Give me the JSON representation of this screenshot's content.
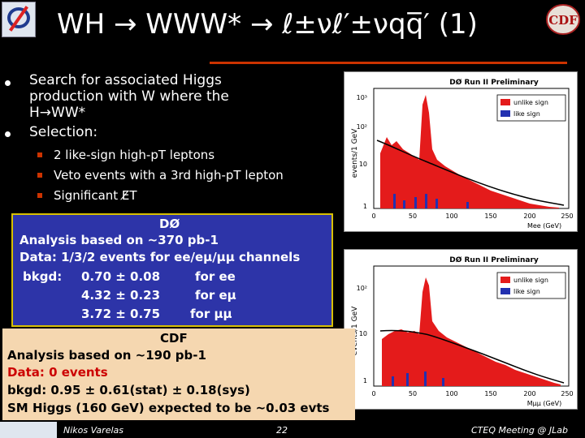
{
  "header": {
    "title": "WH → WWW* → ℓ±νℓ′±νqq̅′ (1)",
    "logo_left": "DØ",
    "logo_right": "CDF"
  },
  "bullets": [
    {
      "text_lines": [
        "Search for associated Higgs",
        "production with W where the",
        "H→WW*"
      ]
    },
    {
      "text_lines": [
        "Selection:"
      ]
    }
  ],
  "sub_bullets": [
    "2 like-sign high-pT leptons",
    "Veto events with a 3rd high-pT lepton",
    "Significant E̸T"
  ],
  "plot_top": {
    "header": "DØ Run II Preliminary",
    "ylabel": "events/1 GeV",
    "xlabel": "Mee (GeV)",
    "legend": [
      "unlike sign",
      "like sign"
    ],
    "yticks": [
      "10³",
      "10²",
      "10",
      "1"
    ],
    "xticks": [
      "0",
      "50",
      "100",
      "150",
      "200",
      "250"
    ]
  },
  "plot_bottom": {
    "header": "DØ Run II Preliminary",
    "ylabel": "events/1 GeV",
    "xlabel": "Mμμ (GeV)",
    "legend": [
      "unlike sign",
      "like sign"
    ],
    "yticks": [
      "10²",
      "10",
      "1"
    ],
    "xticks": [
      "0",
      "50",
      "100",
      "150",
      "200",
      "250"
    ]
  },
  "d0_box": {
    "title": "DØ",
    "lines": [
      "Analysis based on ~370 pb-1",
      "Data: 1/3/2 events for ee/eμ/μμ channels"
    ],
    "bkgd_label": "bkgd:",
    "rows": [
      {
        "value": "0.70 ± 0.08",
        "channel": "for ee"
      },
      {
        "value": "4.32 ± 0.23",
        "channel": "for eμ"
      },
      {
        "value": "3.72 ± 0.75",
        "channel": "for μμ"
      }
    ]
  },
  "cdf_box": {
    "title": "CDF",
    "analysis": "Analysis based on ~190 pb-1",
    "data": "Data: 0 events",
    "bkgd": "bkgd: 0.95 ± 0.61(stat) ± 0.18(sys)",
    "sm": "SM Higgs (160 GeV) expected to be ~0.03 evts"
  },
  "footer": {
    "author": "Nikos Varelas",
    "page": "22",
    "event": "CTEQ Meeting @ JLab"
  },
  "colors": {
    "accent": "#cc3300",
    "d0_box": "#2d34a8",
    "cdf_box": "#f5d7b0",
    "red_text": "#cc0000"
  }
}
